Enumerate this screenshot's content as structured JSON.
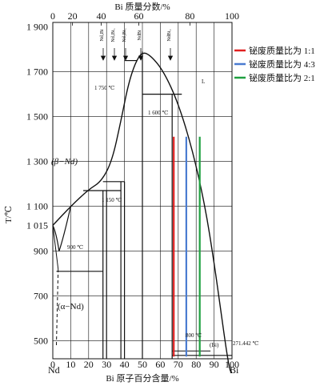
{
  "chart_data": {
    "type": "line",
    "title": "",
    "xlabel_top": "Bi 质量分数/%",
    "xlabel_bottom": "Bi 原子百分含量/%",
    "ylabel": "T/℃",
    "x_bottom_ticks": [
      "0",
      "10",
      "20",
      "30",
      "40",
      "50",
      "60",
      "70",
      "80",
      "90",
      "100"
    ],
    "x_top_ticks": [
      "0",
      "20",
      "40",
      "60",
      "80",
      "100"
    ],
    "y_ticks": [
      "500",
      "700",
      "900",
      "1 015",
      "1 100",
      "1 300",
      "1 500",
      "1 700",
      "1 900"
    ],
    "y_tick_values": [
      500,
      700,
      900,
      1015,
      1100,
      1300,
      1500,
      1700,
      1900
    ],
    "xlim": [
      0,
      100
    ],
    "ylim": [
      420,
      1920
    ],
    "end_labels": [
      "Nd",
      "Bi"
    ],
    "compounds": [
      "Nd₂Bi",
      "Nd₅Bi₃",
      "Nd₄Bi₃",
      "NdBi",
      "NdBi₂"
    ],
    "annotations": {
      "beta_nd": "(β−Nd)",
      "alpha_nd": "(α−Nd)",
      "liquid": "L",
      "bi_phase": "(Bi)",
      "t1750": "1 750 ℃",
      "t1600": "1 600 ℃",
      "t1150": "1 150 ℃",
      "t900": "900 ℃",
      "t800": "800 ℃",
      "t271": "271.442 ℃"
    },
    "liquidus": [
      {
        "x": 0,
        "y": 1015
      },
      {
        "x": 10,
        "y": 1100
      },
      {
        "x": 20,
        "y": 1175
      },
      {
        "x": 27,
        "y": 1210
      },
      {
        "x": 33,
        "y": 1300
      },
      {
        "x": 38,
        "y": 1480
      },
      {
        "x": 42,
        "y": 1640
      },
      {
        "x": 46,
        "y": 1740
      },
      {
        "x": 50,
        "y": 1790
      },
      {
        "x": 55,
        "y": 1770
      },
      {
        "x": 62,
        "y": 1700
      },
      {
        "x": 70,
        "y": 1560
      },
      {
        "x": 78,
        "y": 1350
      },
      {
        "x": 85,
        "y": 1100
      },
      {
        "x": 90,
        "y": 850
      },
      {
        "x": 94,
        "y": 620
      },
      {
        "x": 97,
        "y": 450
      },
      {
        "x": 99,
        "y": 350
      },
      {
        "x": 100,
        "y": 271.442
      }
    ],
    "series": [
      {
        "name": "铋废质量比为 1:1",
        "color": "#e02020",
        "x": 67.5,
        "y_range": [
          430,
          1410
        ]
      },
      {
        "name": "铋废质量比为 4:3",
        "color": "#4a7bd0",
        "x": 74.5,
        "y_range": [
          430,
          1410
        ]
      },
      {
        "name": "铋废质量比为 2:1",
        "color": "#1fa040",
        "x": 82,
        "y_range": [
          430,
          1410
        ]
      }
    ]
  }
}
